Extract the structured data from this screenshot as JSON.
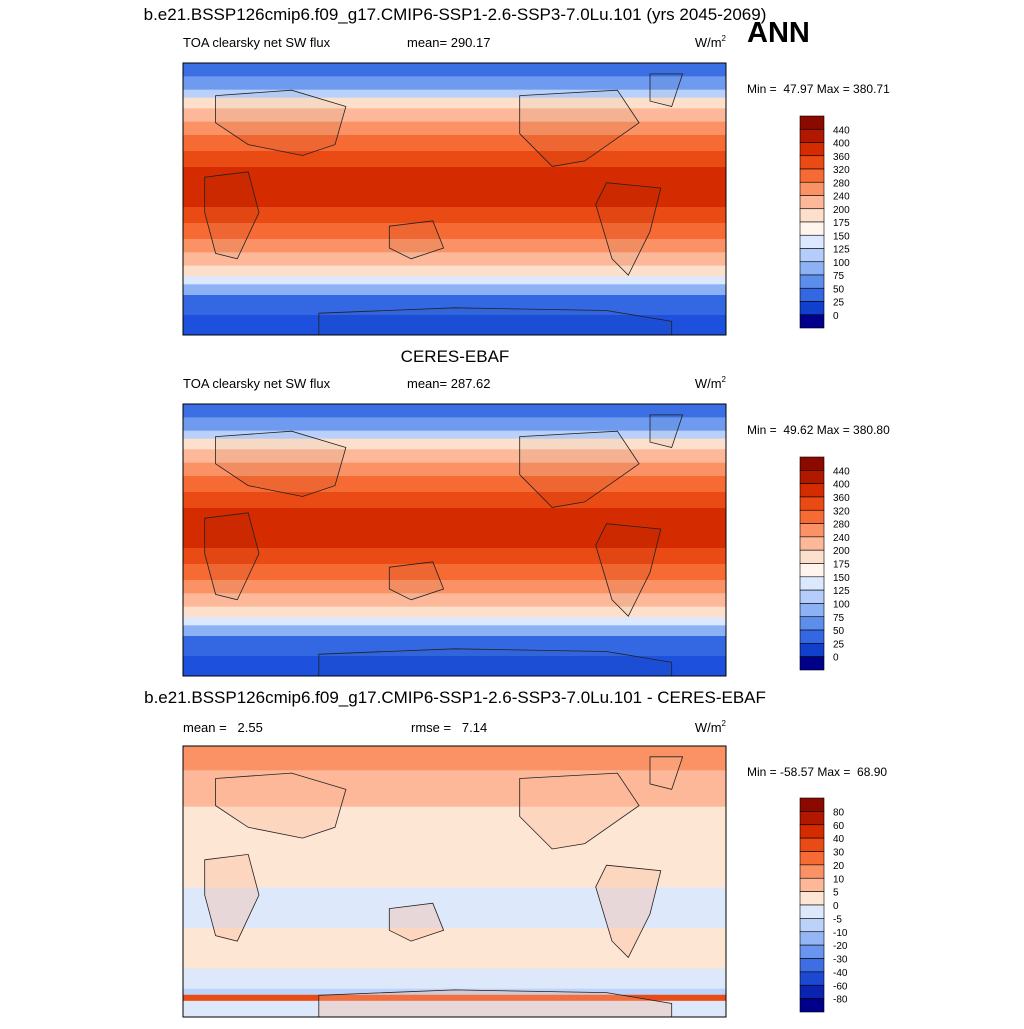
{
  "season": "ANN",
  "panels": [
    {
      "title": "b.e21.BSSP126cmip6.f09_g17.CMIP6-SSP1-2.6-SSP3-7.0Lu.101 (yrs 2045-2069)",
      "left": "TOA clearsky net SW flux",
      "center": "mean= 290.17",
      "units": {
        "base": "W/m",
        "sup": "2"
      },
      "minmax": "Min =  47.97 Max = 380.71",
      "colorbar": {
        "labels": [
          440,
          400,
          360,
          320,
          280,
          240,
          200,
          175,
          150,
          125,
          100,
          75,
          50,
          25,
          0
        ],
        "colors": [
          "#8b0a00",
          "#b01800",
          "#d42b00",
          "#ea4a14",
          "#f66a34",
          "#fa9266",
          "#fcb898",
          "#fde0cc",
          "#fff5ec",
          "#dbe8ff",
          "#b4cdfa",
          "#8cb1f4",
          "#5e8eec",
          "#3468e2",
          "#1040cc",
          "#00008b"
        ]
      }
    },
    {
      "title": "CERES-EBAF",
      "left": "TOA clearsky net SW flux",
      "center": "mean= 287.62",
      "units": {
        "base": "W/m",
        "sup": "2"
      },
      "minmax": "Min =  49.62 Max = 380.80",
      "colorbar": {
        "labels": [
          440,
          400,
          360,
          320,
          280,
          240,
          200,
          175,
          150,
          125,
          100,
          75,
          50,
          25,
          0
        ],
        "colors": [
          "#8b0a00",
          "#b01800",
          "#d42b00",
          "#ea4a14",
          "#f66a34",
          "#fa9266",
          "#fcb898",
          "#fde0cc",
          "#fff5ec",
          "#dbe8ff",
          "#b4cdfa",
          "#8cb1f4",
          "#5e8eec",
          "#3468e2",
          "#1040cc",
          "#00008b"
        ]
      }
    },
    {
      "title": "b.e21.BSSP126cmip6.f09_g17.CMIP6-SSP1-2.6-SSP3-7.0Lu.101 - CERES-EBAF",
      "left": "mean =   2.55",
      "center": "rmse =   7.14",
      "units": {
        "base": "W/m",
        "sup": "2"
      },
      "minmax": "Min = -58.57 Max =  68.90",
      "colorbar": {
        "labels": [
          80,
          60,
          40,
          30,
          20,
          10,
          5,
          0,
          -5,
          -10,
          -20,
          -30,
          -40,
          -60,
          -80
        ],
        "colors": [
          "#8b0a00",
          "#b01800",
          "#d42b00",
          "#ea4a14",
          "#f66a34",
          "#fa9266",
          "#fcb898",
          "#fde6d4",
          "#dde9fb",
          "#bcd3f9",
          "#94b6f4",
          "#6a95ee",
          "#3f6ee4",
          "#1d48d2",
          "#0a24b0",
          "#00008b"
        ]
      }
    }
  ]
}
